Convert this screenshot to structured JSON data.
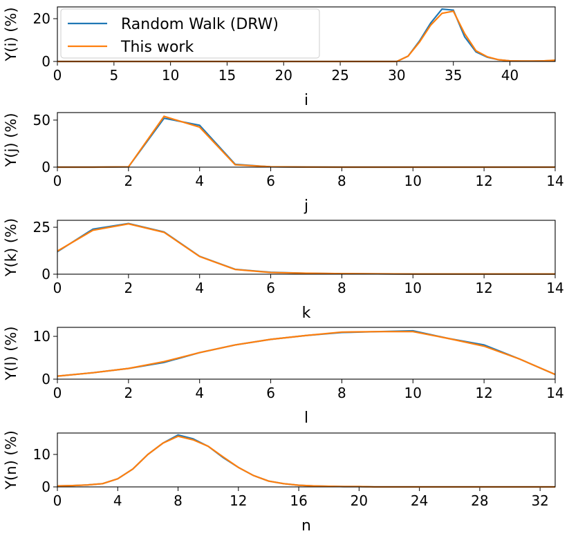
{
  "chart_data": [
    {
      "type": "line",
      "x_label": "i",
      "y_label": "Y(i) (%)",
      "xlim": [
        0,
        44
      ],
      "ylim": [
        0,
        25.5
      ],
      "xticks": [
        0,
        5,
        10,
        15,
        20,
        25,
        30,
        35,
        40
      ],
      "yticks": [
        0,
        20
      ],
      "legend": "upper left",
      "x": [
        0,
        1,
        2,
        3,
        4,
        5,
        6,
        7,
        8,
        9,
        10,
        11,
        12,
        13,
        14,
        15,
        16,
        17,
        18,
        19,
        20,
        21,
        22,
        23,
        24,
        25,
        26,
        27,
        28,
        29,
        30,
        31,
        32,
        33,
        34,
        35,
        36,
        37,
        38,
        39,
        40,
        41,
        42,
        43,
        44
      ],
      "series": [
        {
          "name": "Random Walk (DRW)",
          "color": "#1f77b4",
          "values": [
            0,
            0,
            0,
            0,
            0,
            0,
            0,
            0,
            0,
            0,
            0,
            0,
            0,
            0,
            0,
            0,
            0,
            0,
            0,
            0,
            0,
            0,
            0,
            0,
            0,
            0,
            0,
            0,
            0,
            0,
            0,
            2.5,
            9.5,
            18,
            24.5,
            24,
            11.5,
            4.5,
            2,
            0.8,
            0.3,
            0.2,
            0.2,
            0.3,
            0.5
          ]
        },
        {
          "name": "This work",
          "color": "#ff7f0e",
          "values": [
            0,
            0,
            0,
            0,
            0,
            0,
            0,
            0,
            0,
            0,
            0,
            0,
            0,
            0,
            0,
            0,
            0,
            0,
            0,
            0,
            0,
            0,
            0,
            0,
            0,
            0,
            0,
            0,
            0,
            0,
            0,
            2.5,
            9,
            17,
            22.5,
            23.5,
            13,
            5,
            2.2,
            0.8,
            0.3,
            0.2,
            0.2,
            0.3,
            0.6
          ]
        }
      ]
    },
    {
      "type": "line",
      "x_label": "j",
      "y_label": "Y(j) (%)",
      "xlim": [
        0,
        14
      ],
      "ylim": [
        0,
        58
      ],
      "xticks": [
        0,
        2,
        4,
        6,
        8,
        10,
        12,
        14
      ],
      "yticks": [
        0,
        50
      ],
      "x": [
        0,
        1,
        2,
        3,
        4,
        5,
        6,
        7,
        8,
        9,
        10,
        11,
        12,
        13,
        14
      ],
      "series": [
        {
          "name": "Random Walk (DRW)",
          "color": "#1f77b4",
          "values": [
            0,
            0,
            0.3,
            52,
            44.5,
            3,
            0.4,
            0.1,
            0,
            0,
            0,
            0,
            0,
            0,
            0
          ]
        },
        {
          "name": "This work",
          "color": "#ff7f0e",
          "values": [
            0,
            0,
            0.3,
            54,
            42.5,
            2.5,
            0.4,
            0.1,
            0,
            0,
            0,
            0,
            0,
            0,
            0
          ]
        }
      ]
    },
    {
      "type": "line",
      "x_label": "k",
      "y_label": "Y(k) (%)",
      "xlim": [
        0,
        14
      ],
      "ylim": [
        0,
        28.7
      ],
      "xticks": [
        0,
        2,
        4,
        6,
        8,
        10,
        12,
        14
      ],
      "yticks": [
        0,
        25
      ],
      "x": [
        0,
        1,
        2,
        3,
        4,
        5,
        6,
        7,
        8,
        9,
        10,
        11,
        12,
        13,
        14
      ],
      "series": [
        {
          "name": "Random Walk (DRW)",
          "color": "#1f77b4",
          "values": [
            12,
            24,
            27,
            22.5,
            9.5,
            2.6,
            1,
            0.5,
            0.3,
            0.2,
            0.1,
            0.1,
            0.1,
            0.1,
            0.1
          ]
        },
        {
          "name": "This work",
          "color": "#ff7f0e",
          "values": [
            12.3,
            23.4,
            26.8,
            22.3,
            9.4,
            2.5,
            0.9,
            0.5,
            0.3,
            0.2,
            0.1,
            0.1,
            0.1,
            0.1,
            0.1
          ]
        }
      ]
    },
    {
      "type": "line",
      "x_label": "l",
      "y_label": "Y(l) (%)",
      "xlim": [
        0,
        14
      ],
      "ylim": [
        0,
        12.1
      ],
      "xticks": [
        0,
        2,
        4,
        6,
        8,
        10,
        12,
        14
      ],
      "yticks": [
        0,
        10
      ],
      "x": [
        0,
        1,
        2,
        3,
        4,
        5,
        6,
        7,
        8,
        9,
        10,
        11,
        12,
        13,
        14
      ],
      "series": [
        {
          "name": "Random Walk (DRW)",
          "color": "#1f77b4",
          "values": [
            0.7,
            1.5,
            2.5,
            3.9,
            6.2,
            8,
            9.3,
            10.2,
            10.9,
            11.1,
            11.3,
            9.5,
            8,
            4.7,
            1.1
          ]
        },
        {
          "name": "This work",
          "color": "#ff7f0e",
          "values": [
            0.7,
            1.5,
            2.5,
            4.1,
            6.2,
            8,
            9.3,
            10.2,
            11,
            11.1,
            11.1,
            9.5,
            7.7,
            4.7,
            1.1
          ]
        }
      ]
    },
    {
      "type": "line",
      "x_label": "n",
      "y_label": "Y(n) (%)",
      "xlim": [
        0,
        33
      ],
      "ylim": [
        0,
        16.6
      ],
      "xticks": [
        0,
        4,
        8,
        12,
        16,
        20,
        24,
        28,
        32
      ],
      "yticks": [
        0,
        10
      ],
      "x": [
        0,
        1,
        2,
        3,
        4,
        5,
        6,
        7,
        8,
        9,
        10,
        11,
        12,
        13,
        14,
        15,
        16,
        17,
        18,
        19,
        20,
        21,
        22,
        23,
        24,
        25,
        26,
        27,
        28,
        29,
        30,
        31,
        32,
        33
      ],
      "series": [
        {
          "name": "Random Walk (DRW)",
          "color": "#1f77b4",
          "values": [
            0.3,
            0.4,
            0.6,
            1,
            2.5,
            5.5,
            10,
            13.5,
            16,
            14.8,
            12.5,
            9,
            6,
            3.5,
            1.8,
            1,
            0.5,
            0.3,
            0.2,
            0.1,
            0.1,
            0,
            0,
            0,
            0,
            0,
            0,
            0,
            0,
            0,
            0,
            0,
            0,
            0
          ]
        },
        {
          "name": "This work",
          "color": "#ff7f0e",
          "values": [
            0.3,
            0.4,
            0.6,
            1,
            2.5,
            5.5,
            10,
            13.5,
            15.6,
            14.5,
            12.5,
            9.2,
            6,
            3.5,
            1.8,
            1,
            0.5,
            0.3,
            0.2,
            0.1,
            0.1,
            0,
            0,
            0,
            0,
            0,
            0,
            0,
            0,
            0,
            0,
            0,
            0,
            0
          ]
        }
      ]
    }
  ]
}
